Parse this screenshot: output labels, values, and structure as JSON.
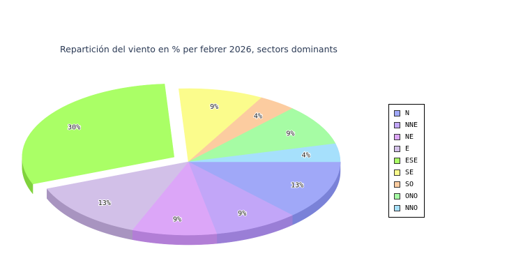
{
  "chart_data": {
    "type": "pie",
    "title": "Repartición del viento en % per febrer 2026, sectors dominants",
    "legend_position": "right",
    "slices": [
      {
        "name": "N",
        "value": 13,
        "label": "13%",
        "color": "#a0a8f8",
        "side": "#7a82d8"
      },
      {
        "name": "NNE",
        "value": 9,
        "label": "9%",
        "color": "#c2a6f8",
        "side": "#9a7ed6"
      },
      {
        "name": "NE",
        "value": 9,
        "label": "9%",
        "color": "#dca6f8",
        "side": "#b27ed6"
      },
      {
        "name": "E",
        "value": 13,
        "label": "13%",
        "color": "#d2c0e8",
        "side": "#a894c0"
      },
      {
        "name": "ESE",
        "value": 30,
        "label": "30%",
        "color": "#aaff66",
        "side": "#7fd23c",
        "exploded": true
      },
      {
        "name": "SE",
        "value": 9,
        "label": "9%",
        "color": "#fbfc8c",
        "side": "#d0d264"
      },
      {
        "name": "SO",
        "value": 4,
        "label": "4%",
        "color": "#fccca0",
        "side": "#d4a47a"
      },
      {
        "name": "ONO",
        "value": 9,
        "label": "9%",
        "color": "#a6fca4",
        "side": "#7ed47c"
      },
      {
        "name": "NNO",
        "value": 4,
        "label": "4%",
        "color": "#a6e0fc",
        "side": "#7eb8d4"
      }
    ]
  }
}
